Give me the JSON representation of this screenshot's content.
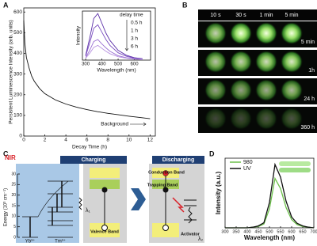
{
  "panels": {
    "labels": [
      "A",
      "B",
      "C",
      "D"
    ]
  },
  "chart_data": [
    {
      "type": "line",
      "ylabel": "Persistent Luminescence Intensity (arb. units)",
      "xlabel": "Decay Time (h)",
      "x": [
        0,
        0.1,
        0.25,
        0.5,
        0.75,
        1,
        1.5,
        2,
        3,
        4,
        5,
        6,
        7,
        8,
        9,
        10,
        11,
        12
      ],
      "values": [
        560,
        450,
        380,
        330,
        290,
        265,
        230,
        205,
        175,
        155,
        140,
        128,
        118,
        110,
        103,
        96,
        90,
        84
      ],
      "color": "#111111",
      "xlim": [
        0,
        12.5
      ],
      "ylim": [
        0,
        620
      ],
      "xticks": [
        0,
        2,
        4,
        6,
        8,
        10,
        12
      ],
      "yticks": [
        0,
        100,
        200,
        300,
        400,
        500,
        600
      ],
      "annotation": "Background"
    },
    {
      "type": "line",
      "ylabel": "Intensity",
      "xlabel": "Wavelength (nm)",
      "legend_title": "delay time",
      "x": [
        300,
        325,
        350,
        375,
        400,
        425,
        450,
        500,
        550,
        600,
        650
      ],
      "series": [
        {
          "name": "0.5 h",
          "color": "#5b2fa8",
          "values": [
            0.1,
            0.45,
            0.85,
            0.95,
            0.75,
            0.55,
            0.4,
            0.2,
            0.1,
            0.05,
            0.03
          ]
        },
        {
          "name": "1 h",
          "color": "#7a4cc0",
          "values": [
            0.08,
            0.35,
            0.65,
            0.72,
            0.57,
            0.42,
            0.3,
            0.15,
            0.08,
            0.04,
            0.02
          ]
        },
        {
          "name": "3 h",
          "color": "#9a70d2",
          "values": [
            0.05,
            0.2,
            0.38,
            0.42,
            0.33,
            0.25,
            0.18,
            0.09,
            0.05,
            0.03,
            0.02
          ]
        },
        {
          "name": "6 h",
          "color": "#b893e0",
          "values": [
            0.04,
            0.14,
            0.26,
            0.3,
            0.24,
            0.18,
            0.13,
            0.07,
            0.04,
            0.02,
            0.01
          ]
        }
      ],
      "xlim": [
        280,
        700
      ],
      "ylim": [
        0,
        1
      ],
      "xticks": [
        300,
        400,
        500,
        600
      ]
    },
    {
      "type": "line",
      "ylabel": "Intensity (a.u.)",
      "xlabel": "Wavelength (nm)",
      "x": [
        300,
        325,
        350,
        375,
        400,
        425,
        450,
        475,
        500,
        525,
        550,
        575,
        600,
        625,
        650,
        675,
        700
      ],
      "series": [
        {
          "name": "980",
          "color": "#6cc04a",
          "values": [
            0,
            0,
            0,
            0,
            0,
            0.01,
            0.02,
            0.06,
            0.3,
            0.78,
            0.62,
            0.32,
            0.13,
            0.05,
            0.02,
            0.01,
            0
          ]
        },
        {
          "name": "UV",
          "color": "#111111",
          "values": [
            0,
            0,
            0,
            0,
            0,
            0.01,
            0.03,
            0.08,
            0.4,
            1.0,
            0.8,
            0.42,
            0.17,
            0.07,
            0.03,
            0.01,
            0
          ]
        }
      ],
      "xlim": [
        300,
        700
      ],
      "ylim": [
        0,
        1.1
      ],
      "xticks": [
        300,
        350,
        400,
        450,
        500,
        550,
        600,
        650,
        700
      ]
    }
  ],
  "photos": {
    "column_labels": [
      "10 s",
      "30 s",
      "1 min",
      "5 min"
    ],
    "row_labels": [
      "5 min",
      "1h",
      "24 h",
      "360 h"
    ]
  },
  "diagram": {
    "excitation": "NIR",
    "steps": [
      "Charging",
      "Discharging"
    ],
    "energy_axis": {
      "label": "Energy (10³ cm⁻¹)",
      "ticks": [
        0,
        5,
        10,
        15,
        20,
        25,
        30
      ],
      "lim": [
        0,
        30
      ]
    },
    "ions": [
      "Yb³⁺",
      "Tm³⁺"
    ],
    "bands": [
      "Conduction Band",
      "Trapping Band",
      "Valence Band"
    ],
    "activator": "Activator",
    "wavelengths": [
      "λ₁",
      "λ₂"
    ]
  }
}
